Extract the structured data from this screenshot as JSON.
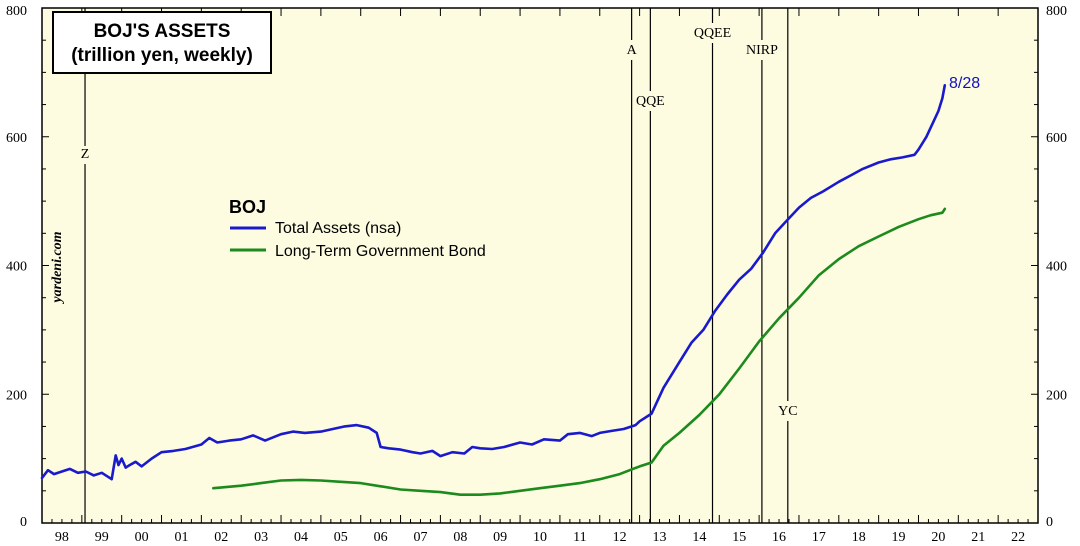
{
  "chart_data": {
    "type": "line",
    "title": "BOJ'S  ASSETS",
    "subtitle": "(trillion yen, weekly)",
    "watermark": "yardeni.com",
    "legend_title": "BOJ",
    "ylim": [
      0,
      800
    ],
    "yticks": [
      0,
      200,
      400,
      600,
      800
    ],
    "xlim": [
      1998,
      2023
    ],
    "year_labels": [
      "98",
      "99",
      "00",
      "01",
      "02",
      "03",
      "04",
      "05",
      "06",
      "07",
      "08",
      "09",
      "10",
      "11",
      "12",
      "13",
      "14",
      "15",
      "16",
      "17",
      "18",
      "19",
      "20",
      "21",
      "22"
    ],
    "events": [
      {
        "label": "Z",
        "x": 1999.08
      },
      {
        "label": "A",
        "x": 2012.8
      },
      {
        "label": "QQE",
        "x": 2013.27
      },
      {
        "label": "QQEE",
        "x": 2014.83
      },
      {
        "label": "NIRP",
        "x": 2016.07
      },
      {
        "label": "YC",
        "x": 2016.72
      }
    ],
    "end_label": "8/28",
    "series": [
      {
        "name": "Total Assets (nsa)",
        "color": "#1a1acc",
        "x": [
          1998.0,
          1998.15,
          1998.3,
          1998.5,
          1998.7,
          1998.9,
          1999.1,
          1999.3,
          1999.5,
          1999.75,
          1999.85,
          1999.92,
          2000.0,
          2000.1,
          2000.2,
          2000.35,
          2000.5,
          2000.75,
          2001.0,
          2001.3,
          2001.6,
          2002.0,
          2002.2,
          2002.4,
          2002.7,
          2003.0,
          2003.3,
          2003.6,
          2004.0,
          2004.3,
          2004.6,
          2005.0,
          2005.3,
          2005.6,
          2005.9,
          2006.2,
          2006.4,
          2006.5,
          2006.7,
          2007.0,
          2007.3,
          2007.5,
          2007.8,
          2008.0,
          2008.3,
          2008.6,
          2008.8,
          2009.0,
          2009.3,
          2009.6,
          2010.0,
          2010.3,
          2010.6,
          2011.0,
          2011.2,
          2011.5,
          2011.8,
          2012.0,
          2012.3,
          2012.6,
          2012.9,
          2013.0,
          2013.3,
          2013.6,
          2014.0,
          2014.3,
          2014.6,
          2014.9,
          2015.2,
          2015.5,
          2015.8,
          2016.1,
          2016.4,
          2016.7,
          2017.0,
          2017.3,
          2017.6,
          2018.0,
          2018.3,
          2018.6,
          2019.0,
          2019.3,
          2019.6,
          2019.9,
          2020.0,
          2020.2,
          2020.35,
          2020.5,
          2020.6,
          2020.66
        ],
        "values": [
          70,
          82,
          76,
          80,
          84,
          78,
          80,
          74,
          78,
          68,
          105,
          90,
          100,
          86,
          90,
          95,
          88,
          100,
          110,
          112,
          115,
          122,
          132,
          125,
          128,
          130,
          136,
          128,
          138,
          142,
          140,
          142,
          146,
          150,
          152,
          148,
          140,
          118,
          116,
          114,
          110,
          108,
          112,
          104,
          110,
          108,
          118,
          116,
          115,
          118,
          125,
          122,
          130,
          128,
          138,
          140,
          135,
          140,
          143,
          146,
          152,
          158,
          170,
          210,
          250,
          280,
          300,
          330,
          355,
          378,
          395,
          420,
          450,
          470,
          490,
          505,
          515,
          530,
          540,
          550,
          560,
          565,
          568,
          572,
          580,
          600,
          620,
          640,
          660,
          680
        ]
      },
      {
        "name": "Long-Term Government Bond",
        "color": "#1c8a1c",
        "x": [
          2002.3,
          2003.0,
          2003.5,
          2004.0,
          2004.5,
          2005.0,
          2005.5,
          2006.0,
          2006.5,
          2007.0,
          2007.5,
          2008.0,
          2008.5,
          2009.0,
          2009.5,
          2010.0,
          2010.5,
          2011.0,
          2011.5,
          2012.0,
          2012.5,
          2013.0,
          2013.3,
          2013.6,
          2014.0,
          2014.5,
          2015.0,
          2015.5,
          2016.0,
          2016.5,
          2017.0,
          2017.5,
          2018.0,
          2018.5,
          2019.0,
          2019.5,
          2020.0,
          2020.3,
          2020.6,
          2020.66
        ],
        "values": [
          54,
          58,
          62,
          66,
          67,
          66,
          64,
          62,
          57,
          52,
          50,
          48,
          44,
          44,
          46,
          50,
          54,
          58,
          62,
          68,
          76,
          88,
          94,
          120,
          140,
          168,
          200,
          240,
          282,
          318,
          350,
          385,
          410,
          430,
          445,
          460,
          472,
          478,
          482,
          488
        ]
      }
    ]
  }
}
